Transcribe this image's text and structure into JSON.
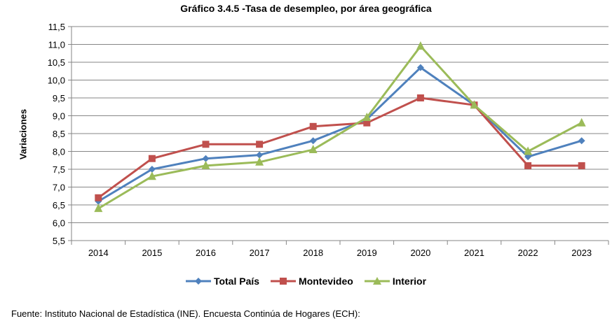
{
  "chart_data": {
    "type": "line",
    "title": "Gráfico 3.4.5 -Tasa de desempleo, por área geográfica",
    "ylabel": "Variaciones",
    "xlabel": "",
    "categories": [
      "2014",
      "2015",
      "2016",
      "2017",
      "2018",
      "2019",
      "2020",
      "2021",
      "2022",
      "2023"
    ],
    "ylim": [
      5.5,
      11.5
    ],
    "yticks": [
      "5,5",
      "6,0",
      "6,5",
      "7,0",
      "7,5",
      "8,0",
      "8,5",
      "9,0",
      "9,5",
      "10,0",
      "10,5",
      "11,0",
      "11,5"
    ],
    "grid": true,
    "legend_position": "bottom",
    "series": [
      {
        "name": "Total País",
        "color": "#4F81BD",
        "marker": "diamond",
        "values": [
          6.6,
          7.5,
          7.8,
          7.9,
          8.3,
          8.9,
          10.35,
          9.3,
          7.85,
          8.3
        ]
      },
      {
        "name": "Montevideo",
        "color": "#C0504D",
        "marker": "square",
        "values": [
          6.7,
          7.8,
          8.2,
          8.2,
          8.7,
          8.8,
          9.5,
          9.3,
          7.6,
          7.6
        ]
      },
      {
        "name": "Interior",
        "color": "#9BBB59",
        "marker": "triangle",
        "values": [
          6.4,
          7.3,
          7.6,
          7.7,
          8.05,
          8.95,
          10.95,
          9.3,
          8.0,
          8.8
        ]
      }
    ]
  },
  "source_note": "Fuente: Instituto Nacional de Estadística (INE). Encuesta Continúa de Hogares (ECH):"
}
